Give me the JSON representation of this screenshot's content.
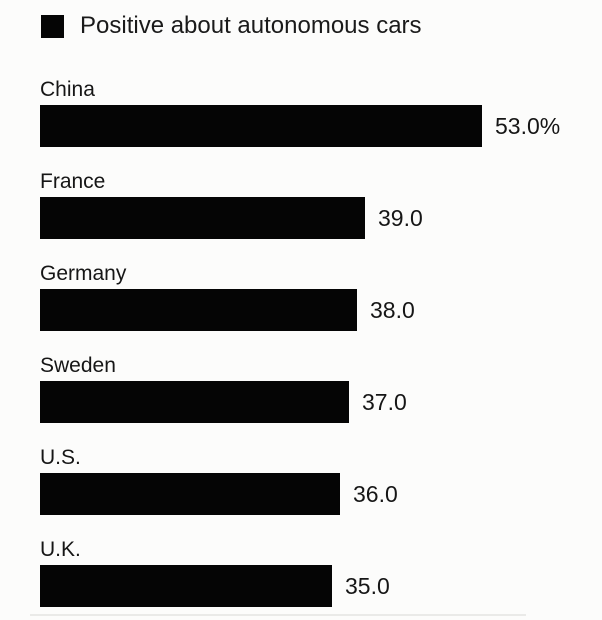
{
  "chart_data": {
    "type": "bar",
    "orientation": "horizontal",
    "legend": "Positive about autonomous cars",
    "legend_position": "top-left",
    "categories": [
      "China",
      "France",
      "Germany",
      "Sweden",
      "U.S.",
      "U.K."
    ],
    "values": [
      53.0,
      39.0,
      38.0,
      37.0,
      36.0,
      35.0
    ],
    "display_values": [
      "53.0%",
      "39.0",
      "38.0",
      "37.0",
      "36.0",
      "35.0"
    ],
    "unit": "%",
    "xlim": [
      0,
      53
    ],
    "grid": false,
    "bar_color": "#050505",
    "text_color": "#161616",
    "background_color": "#fcfcfb"
  }
}
